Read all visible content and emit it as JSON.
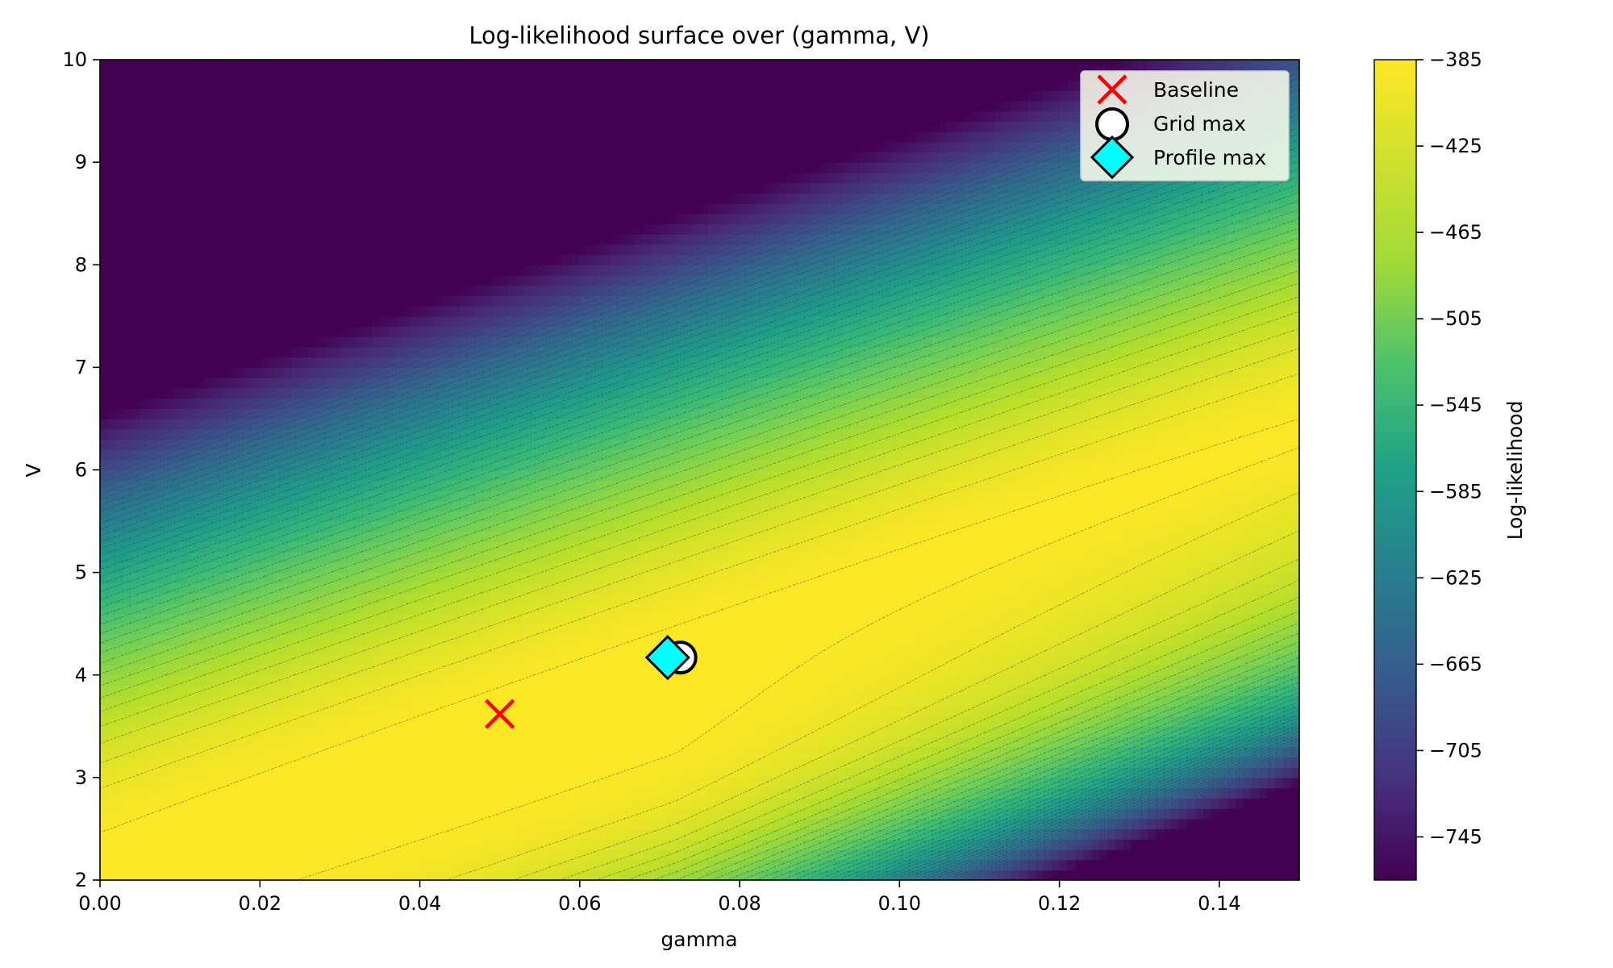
{
  "chart_data": {
    "type": "heatmap",
    "subtype": "filled-contour",
    "title": "Log-likelihood surface over (gamma, V)",
    "xlabel": "gamma",
    "ylabel": "V",
    "xlim": [
      0.0,
      0.15
    ],
    "ylim": [
      2,
      10
    ],
    "x_ticks": [
      0.0,
      0.02,
      0.04,
      0.06,
      0.08,
      0.1,
      0.12,
      0.14
    ],
    "x_tick_labels": [
      "0.00",
      "0.02",
      "0.04",
      "0.06",
      "0.08",
      "0.10",
      "0.12",
      "0.14"
    ],
    "y_ticks": [
      2,
      3,
      4,
      5,
      6,
      7,
      8,
      9,
      10
    ],
    "y_tick_labels": [
      "2",
      "3",
      "4",
      "5",
      "6",
      "7",
      "8",
      "9",
      "10"
    ],
    "grid": false,
    "colormap": "viridis",
    "colorbar": {
      "label": "Log-likelihood",
      "range": [
        -765,
        -385
      ],
      "ticks": [
        -385,
        -425,
        -465,
        -505,
        -545,
        -585,
        -625,
        -665,
        -705,
        -745
      ],
      "tick_labels": [
        "−385",
        "−425",
        "−465",
        "−505",
        "−545",
        "−585",
        "−625",
        "−665",
        "−705",
        "−745"
      ]
    },
    "surface_model": {
      "peak_value": -385,
      "peak_gamma": 0.072,
      "peak_V": 4.17,
      "ridge_slope_V_per_gamma": 27.0
    },
    "markers": [
      {
        "name": "Baseline",
        "gamma": 0.05,
        "V": 3.62,
        "shape": "x",
        "color": "#ff0000"
      },
      {
        "name": "Grid max",
        "gamma": 0.0726,
        "V": 4.17,
        "shape": "circle",
        "color": "#ffffff"
      },
      {
        "name": "Profile max",
        "gamma": 0.071,
        "V": 4.17,
        "shape": "diamond",
        "color": "#00ffff"
      }
    ],
    "legend": {
      "placement": "top-right",
      "entries": [
        "Baseline",
        "Grid max",
        "Profile max"
      ]
    }
  }
}
